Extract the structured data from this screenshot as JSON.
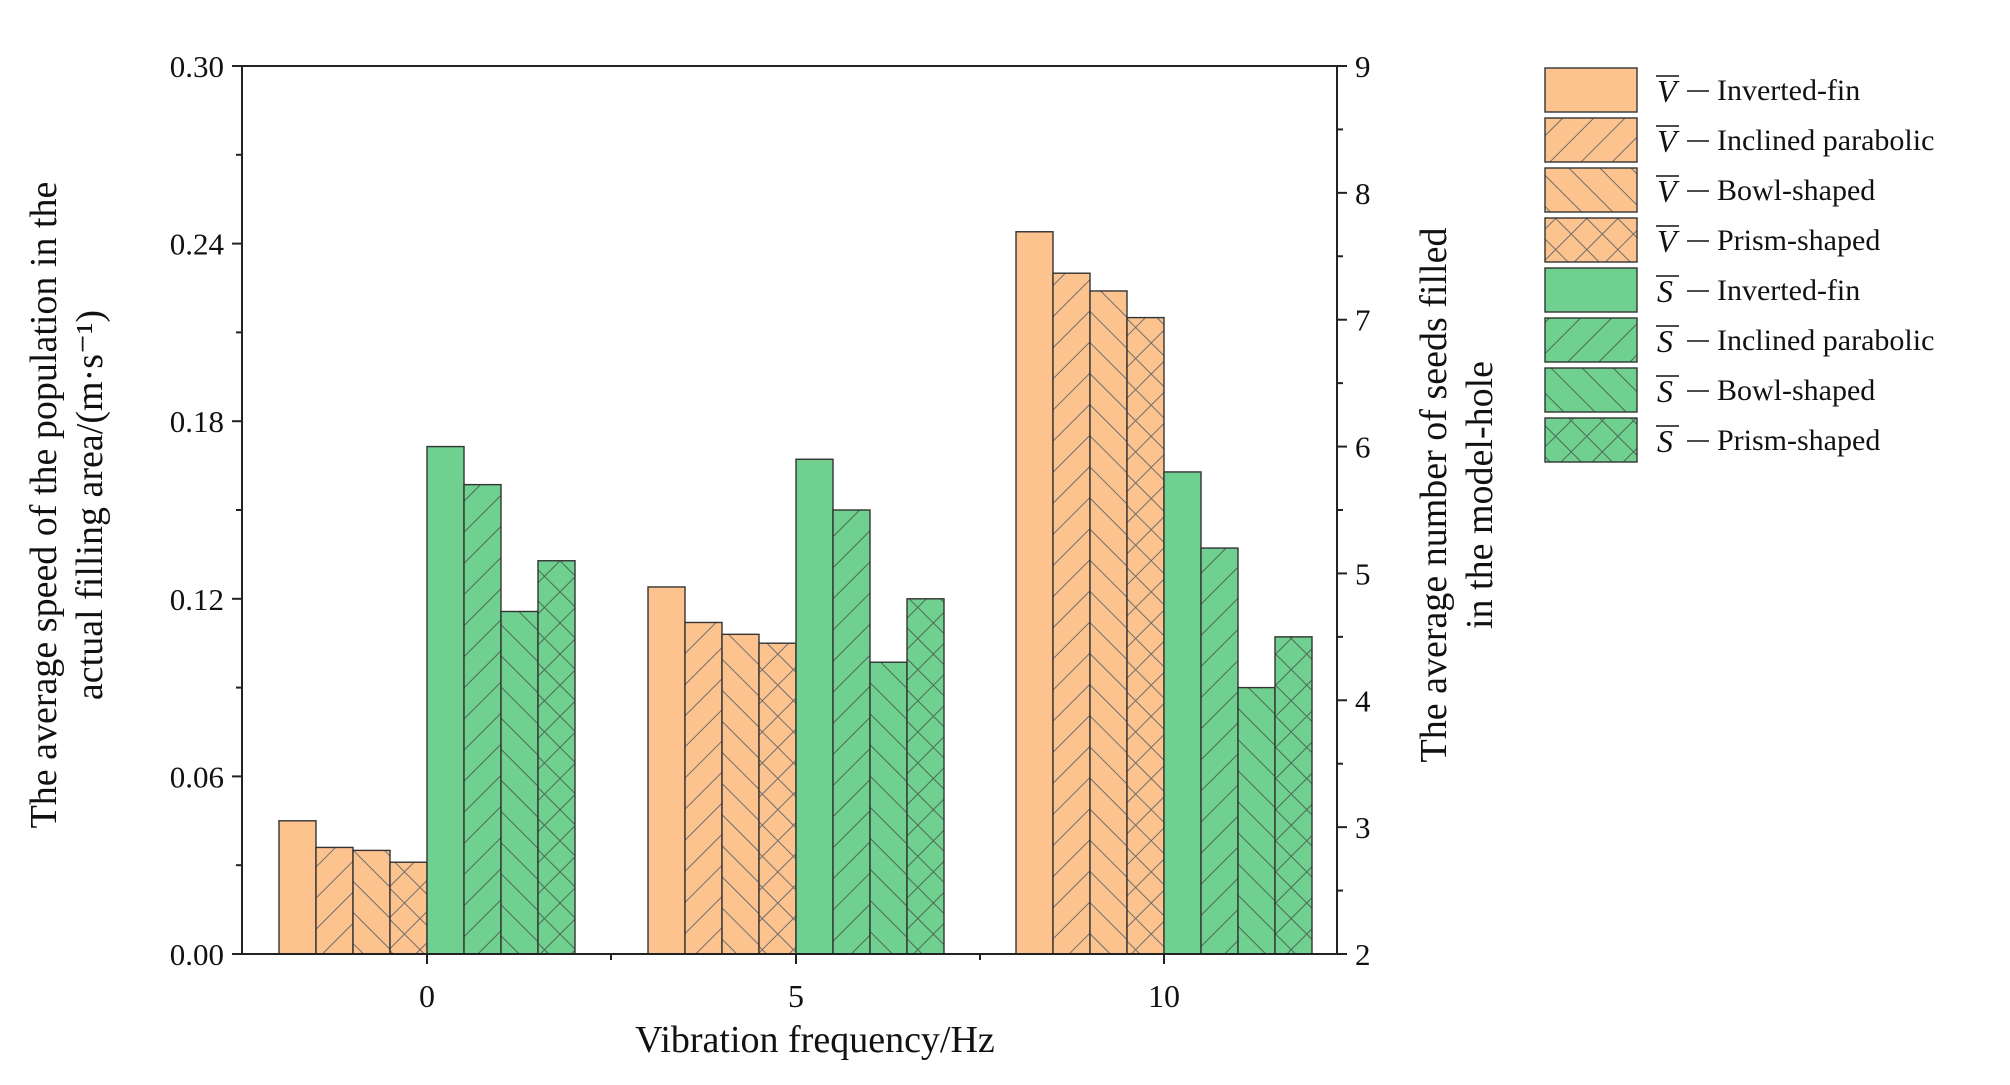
{
  "chart_data": {
    "type": "bar",
    "title": "",
    "categories": [
      "0",
      "5",
      "10"
    ],
    "xlabel": "Vibration frequency/Hz",
    "ylabel": "The average speed of the population in the actual filling area/(m·s⁻¹)",
    "ylabel_lines": [
      "The average speed of the population in the",
      "actual filling area/(m·s⁻¹)"
    ],
    "y2label": "The average number of seeds filled in the model-hole",
    "y2label_lines": [
      "The average number of seeds filled",
      "in the model-hole"
    ],
    "ylim": [
      0,
      0.3
    ],
    "y2lim": [
      2,
      9
    ],
    "yticks": [
      "0.00",
      "0.06",
      "0.12",
      "0.18",
      "0.24",
      "0.30"
    ],
    "y2ticks": [
      "2",
      "3",
      "4",
      "5",
      "6",
      "7",
      "8",
      "9"
    ],
    "legend_position": "right, outside plot",
    "colors": {
      "V": "#fdc38f",
      "S": "#6fd08f",
      "edge": "#333333",
      "hatch": "#5a5a5a"
    },
    "series": [
      {
        "name": "V̄ — Inverted-fin",
        "symbol": "V",
        "label": "Inverted-fin",
        "axis": "left",
        "hatch": "none",
        "values": [
          0.045,
          0.124,
          0.244
        ]
      },
      {
        "name": "V̄ — Inclined parabolic",
        "symbol": "V",
        "label": "Inclined parabolic",
        "axis": "left",
        "hatch": "slash",
        "values": [
          0.036,
          0.112,
          0.23
        ]
      },
      {
        "name": "V̄ — Bowl-shaped",
        "symbol": "V",
        "label": "Bowl-shaped",
        "axis": "left",
        "hatch": "backslash",
        "values": [
          0.035,
          0.108,
          0.224
        ]
      },
      {
        "name": "V̄ — Prism-shaped",
        "symbol": "V",
        "label": "Prism-shaped",
        "axis": "left",
        "hatch": "cross",
        "values": [
          0.031,
          0.105,
          0.215
        ]
      },
      {
        "name": "S̄ — Inverted-fin",
        "symbol": "S",
        "label": "Inverted-fin",
        "axis": "right",
        "hatch": "none",
        "values": [
          6.0,
          5.9,
          5.8
        ]
      },
      {
        "name": "S̄ — Inclined parabolic",
        "symbol": "S",
        "label": "Inclined parabolic",
        "axis": "right",
        "hatch": "slash",
        "values": [
          5.7,
          5.5,
          5.2
        ]
      },
      {
        "name": "S̄ — Bowl-shaped",
        "symbol": "S",
        "label": "Bowl-shaped",
        "axis": "right",
        "hatch": "backslash",
        "values": [
          4.7,
          4.3,
          4.1
        ]
      },
      {
        "name": "S̄ — Prism-shaped",
        "symbol": "S",
        "label": "Prism-shaped",
        "axis": "right",
        "hatch": "cross",
        "values": [
          5.1,
          4.8,
          4.5
        ]
      }
    ]
  }
}
